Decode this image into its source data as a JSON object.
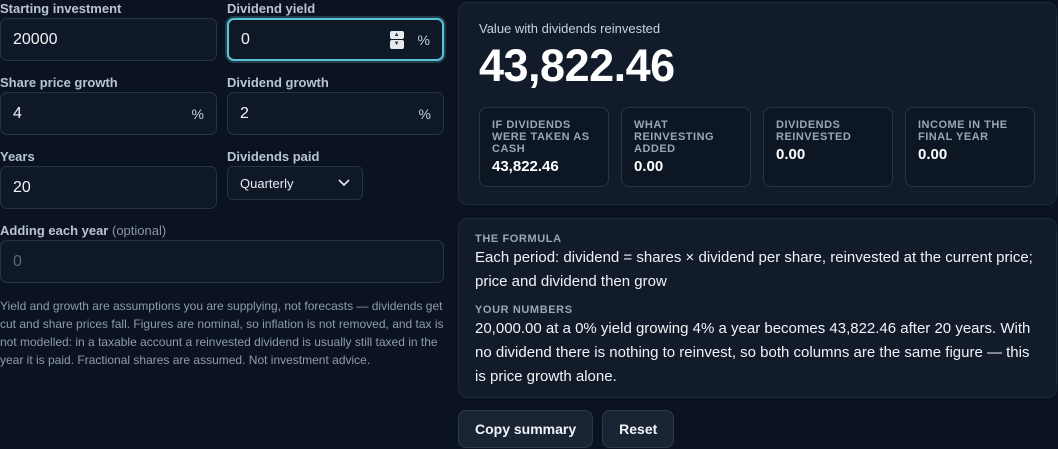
{
  "inputs": {
    "starting_investment": {
      "label": "Starting investment",
      "value": "20000"
    },
    "dividend_yield": {
      "label": "Dividend yield",
      "value": "0",
      "unit": "%"
    },
    "share_price_growth": {
      "label": "Share price growth",
      "value": "4",
      "unit": "%"
    },
    "dividend_growth": {
      "label": "Dividend growth",
      "value": "2",
      "unit": "%"
    },
    "years": {
      "label": "Years",
      "value": "20"
    },
    "dividends_paid": {
      "label": "Dividends paid",
      "selected": "Quarterly"
    },
    "adding_each_year": {
      "label": "Adding each year",
      "optional": "(optional)",
      "placeholder": "0"
    }
  },
  "note": "Yield and growth are assumptions you are supplying, not forecasts — dividends get cut and share prices fall. Figures are nominal, so inflation is not removed, and tax is not modelled: in a taxable account a reinvested dividend is usually still taxed in the year it is paid. Fractional shares are assumed. Not investment advice.",
  "result": {
    "label": "Value with dividends reinvested",
    "value": "43,822.46",
    "cards": [
      {
        "label": "IF DIVIDENDS WERE TAKEN AS CASH",
        "value": "43,822.46"
      },
      {
        "label": "WHAT REINVESTING ADDED",
        "value": "0.00"
      },
      {
        "label": "DIVIDENDS REINVESTED",
        "value": "0.00"
      },
      {
        "label": "INCOME IN THE FINAL YEAR",
        "value": "0.00"
      }
    ]
  },
  "formula": {
    "label": "THE FORMULA",
    "text": "Each period: dividend = shares × dividend per share, reinvested at the current price; price and dividend then grow",
    "numbers_label": "YOUR NUMBERS",
    "numbers_text": "20,000.00 at a 0% yield growing 4% a year becomes 43,822.46 after 20 years. With no dividend there is nothing to reinvest, so both columns are the same figure — this is price growth alone."
  },
  "buttons": {
    "copy": "Copy summary",
    "reset": "Reset"
  },
  "colors": {
    "accent_focus": "#5bc3d6",
    "background": "#0b1320",
    "panel": "#111b29"
  }
}
